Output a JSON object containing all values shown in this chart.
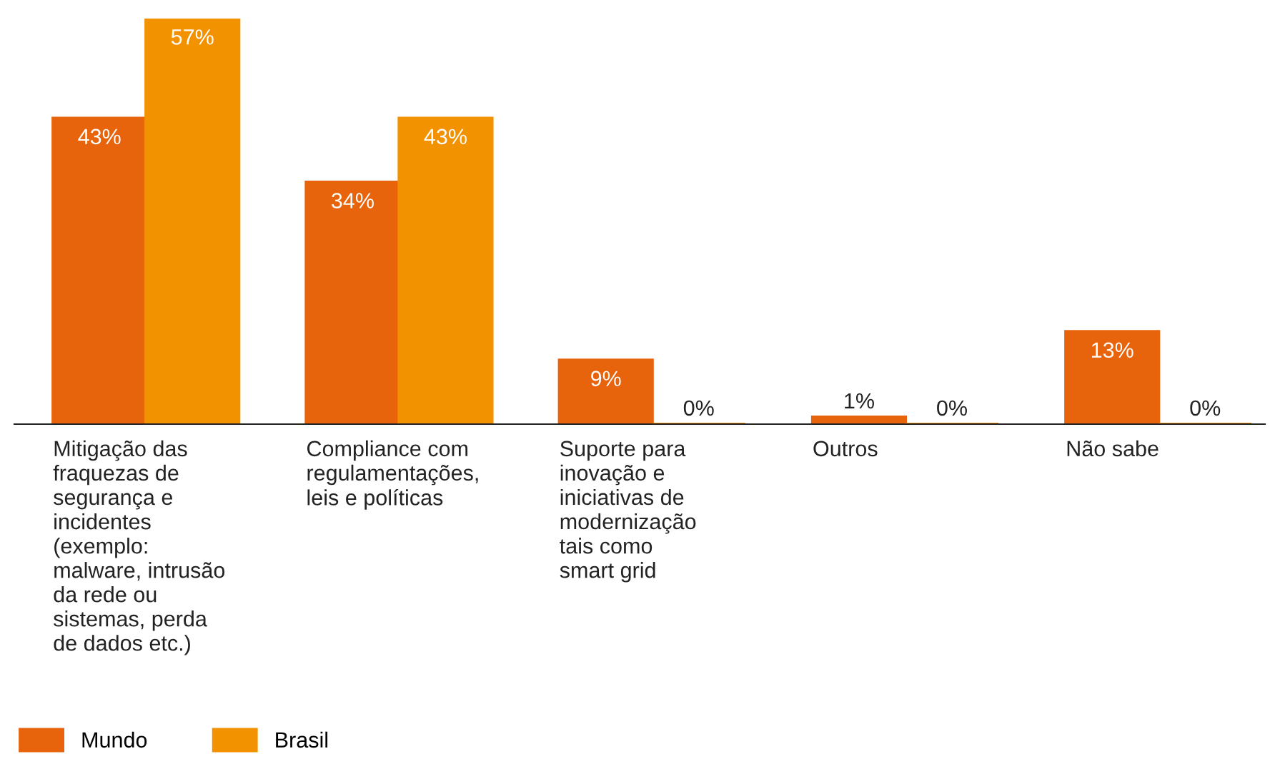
{
  "chart_data": {
    "type": "bar",
    "categories": [
      "Mitigação das\nfraquezas de\nsegurança e\nincidentes\n(exemplo:\nmalware, intrusão\nda rede ou\nsistemas, perda\nde dados etc.)",
      "Compliance com\nregulamentações,\nleis e políticas",
      "Suporte para\ninovação e\niniciativas de\nmodernização\ntais como\nsmart grid",
      "Outros",
      "Não sabe"
    ],
    "series": [
      {
        "name": "Mundo",
        "color": "#e8640c",
        "values": [
          43,
          34,
          9,
          1,
          13
        ],
        "value_labels": [
          "43%",
          "34%",
          "9%",
          "1%",
          "13%"
        ]
      },
      {
        "name": "Brasil",
        "color": "#f39200",
        "values": [
          57,
          43,
          0,
          0,
          0
        ],
        "value_labels": [
          "57%",
          "43%",
          "0%",
          "0%",
          "0%"
        ]
      }
    ],
    "legend": "bottom left"
  }
}
